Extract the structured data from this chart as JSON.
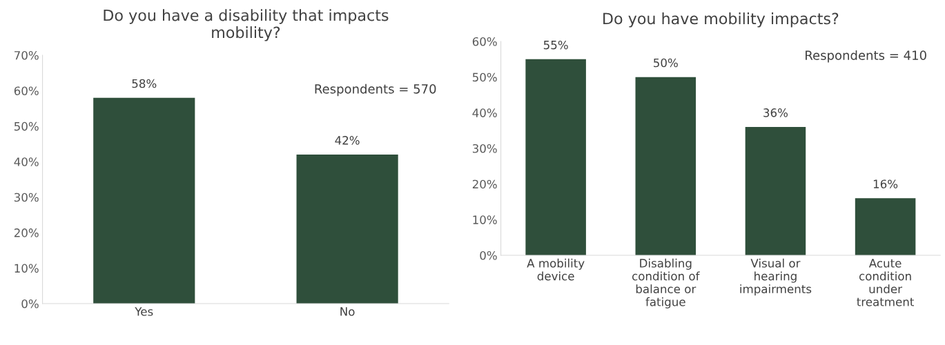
{
  "chart_data": [
    {
      "type": "bar",
      "title": "Do you have a disability that impacts mobility?",
      "categories": [
        "Yes",
        "No"
      ],
      "values": [
        58,
        42
      ],
      "color": "#2f4f3b",
      "value_labels": [
        "58%",
        "42%"
      ],
      "ylim": [
        0,
        70
      ],
      "yticks": [
        {
          "value": 0,
          "label": "0%"
        },
        {
          "value": 10,
          "label": "10%"
        },
        {
          "value": 20,
          "label": "20%"
        },
        {
          "value": 30,
          "label": "30%"
        },
        {
          "value": 40,
          "label": "40%"
        },
        {
          "value": 50,
          "label": "50%"
        },
        {
          "value": 60,
          "label": "60%"
        },
        {
          "value": 70,
          "label": "70%"
        }
      ],
      "annotations": [
        "Respondents = 570"
      ],
      "grid": false,
      "legend": false
    },
    {
      "type": "bar",
      "title": "Do you have mobility impacts?",
      "categories": [
        "A mobility device",
        "Disabling condition of balance or fatigue",
        "Visual or hearing impairments",
        "Acute condition under treatment"
      ],
      "values": [
        55,
        50,
        36,
        16
      ],
      "color": "#2f4f3b",
      "value_labels": [
        "55%",
        "50%",
        "36%",
        "16%"
      ],
      "ylim": [
        0,
        60
      ],
      "yticks": [
        {
          "value": 0,
          "label": "0%"
        },
        {
          "value": 10,
          "label": "10%"
        },
        {
          "value": 20,
          "label": "20%"
        },
        {
          "value": 30,
          "label": "30%"
        },
        {
          "value": 40,
          "label": "40%"
        },
        {
          "value": 50,
          "label": "50%"
        },
        {
          "value": 60,
          "label": "60%"
        }
      ],
      "annotations": [
        "Respondents = 410"
      ],
      "grid": false,
      "legend": false
    }
  ]
}
